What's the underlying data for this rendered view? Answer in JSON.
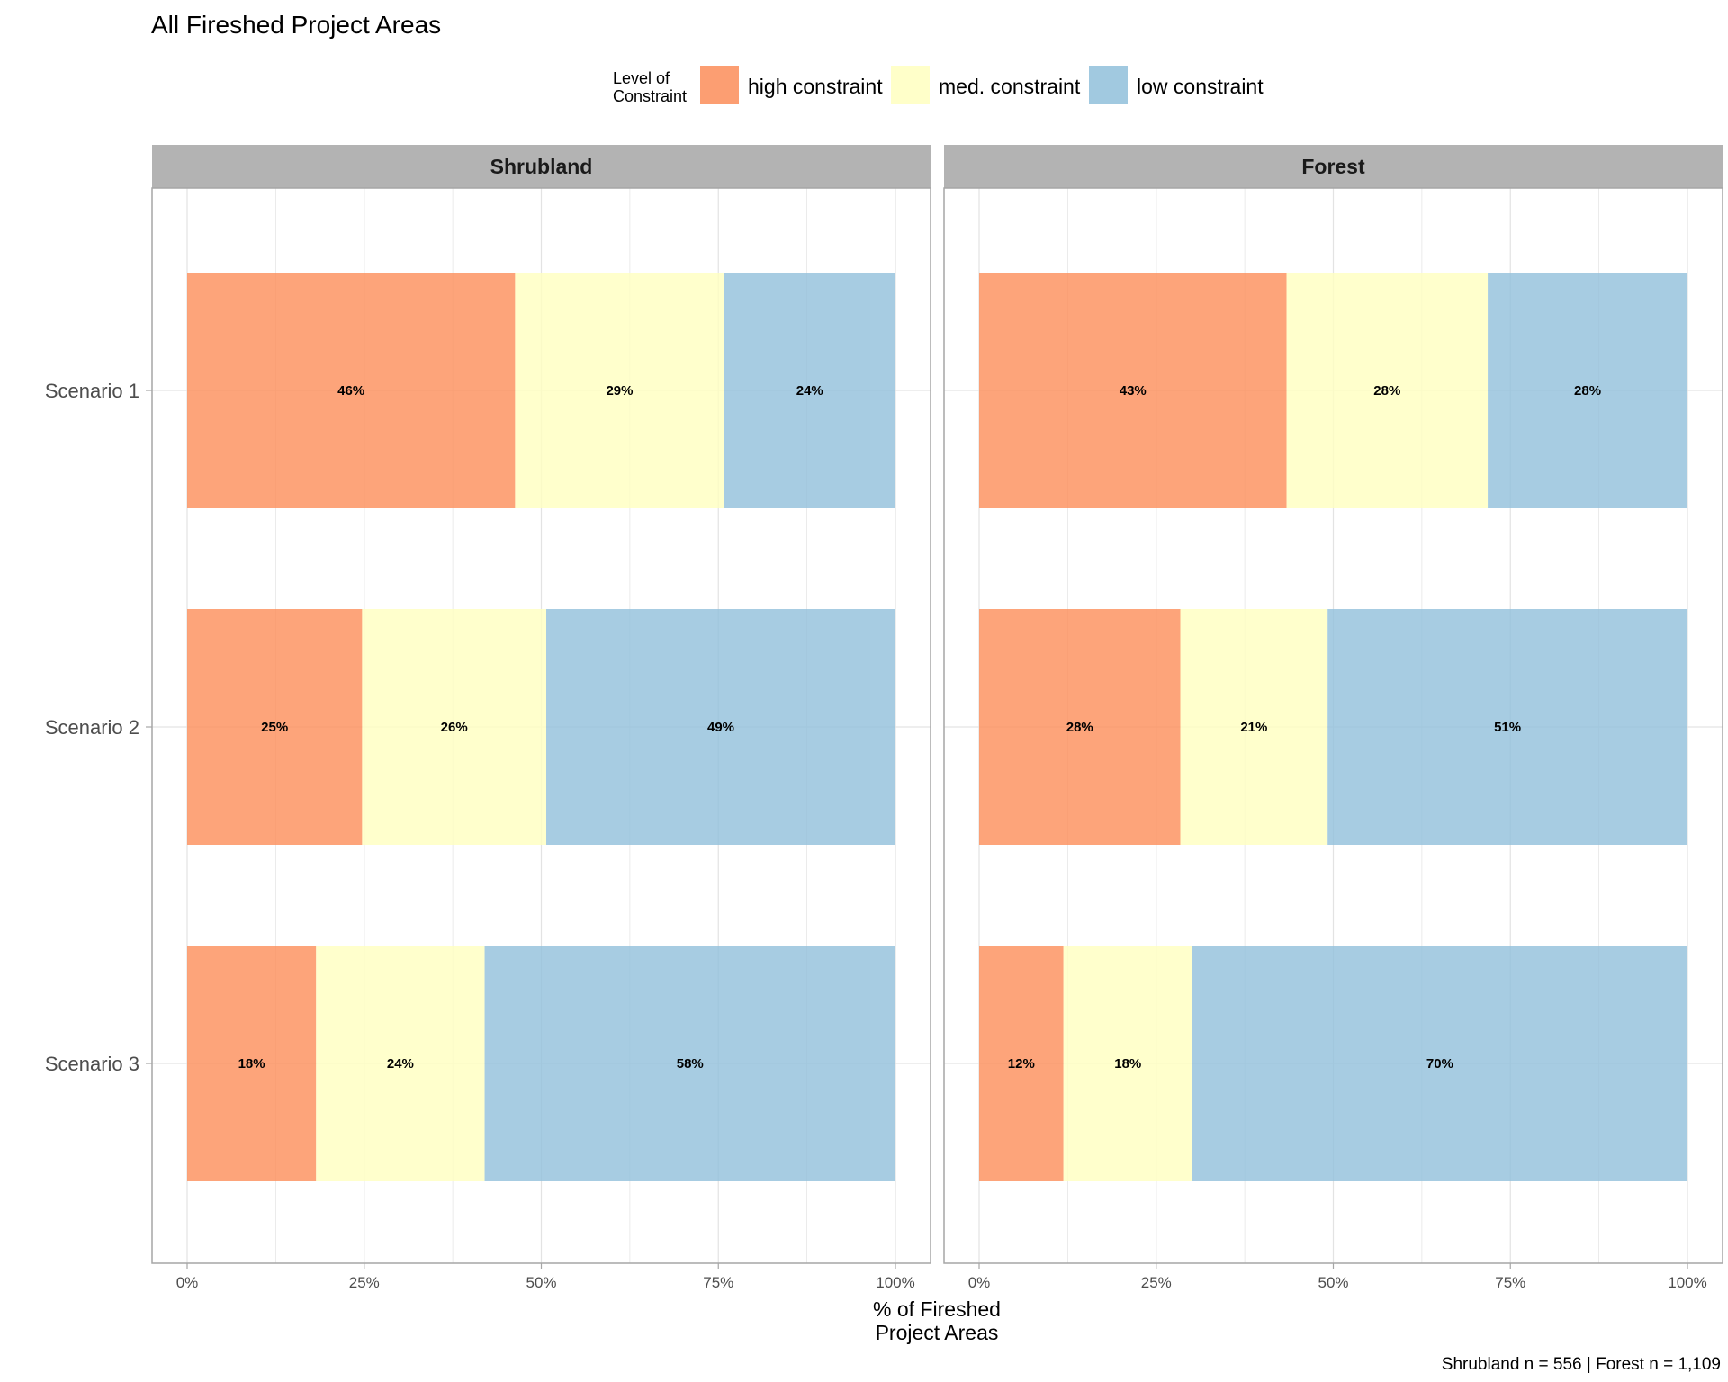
{
  "chart_data": {
    "type": "bar",
    "orientation": "horizontal",
    "stacked": true,
    "title": "All Fireshed Project Areas",
    "xlabel": "% of Fireshed\nProject Areas",
    "ylabel": "",
    "xlim": [
      0,
      100
    ],
    "xticks": [
      "0%",
      "25%",
      "50%",
      "75%",
      "100%"
    ],
    "grid": true,
    "legend": {
      "title": "Level of\nConstraint",
      "position": "top",
      "entries": [
        {
          "name": "high constraint",
          "color": "#FC8D59"
        },
        {
          "name": "med. constraint",
          "color": "#FFFFBF"
        },
        {
          "name": "low constraint",
          "color": "#91BFDB"
        }
      ]
    },
    "caption": "Shrubland n = 556 | Forest n = 1,109",
    "categories": [
      "Scenario 1",
      "Scenario 2",
      "Scenario 3"
    ],
    "panels": [
      {
        "name": "Shrubland",
        "series": [
          {
            "name": "high constraint",
            "values": [
              46.3,
              24.7,
              18.2
            ],
            "labels": [
              "46%",
              "25%",
              "18%"
            ]
          },
          {
            "name": "med. constraint",
            "values": [
              29.5,
              26.0,
              23.8
            ],
            "labels": [
              "29%",
              "26%",
              "24%"
            ]
          },
          {
            "name": "low constraint",
            "values": [
              24.2,
              49.3,
              58.0
            ],
            "labels": [
              "24%",
              "49%",
              "58%"
            ]
          }
        ]
      },
      {
        "name": "Forest",
        "series": [
          {
            "name": "high constraint",
            "values": [
              43.4,
              28.4,
              11.9
            ],
            "labels": [
              "43%",
              "28%",
              "12%"
            ]
          },
          {
            "name": "med. constraint",
            "values": [
              28.4,
              20.8,
              18.2
            ],
            "labels": [
              "28%",
              "21%",
              "18%"
            ]
          },
          {
            "name": "low constraint",
            "values": [
              28.2,
              50.8,
              69.9
            ],
            "labels": [
              "28%",
              "51%",
              "70%"
            ]
          }
        ]
      }
    ]
  }
}
